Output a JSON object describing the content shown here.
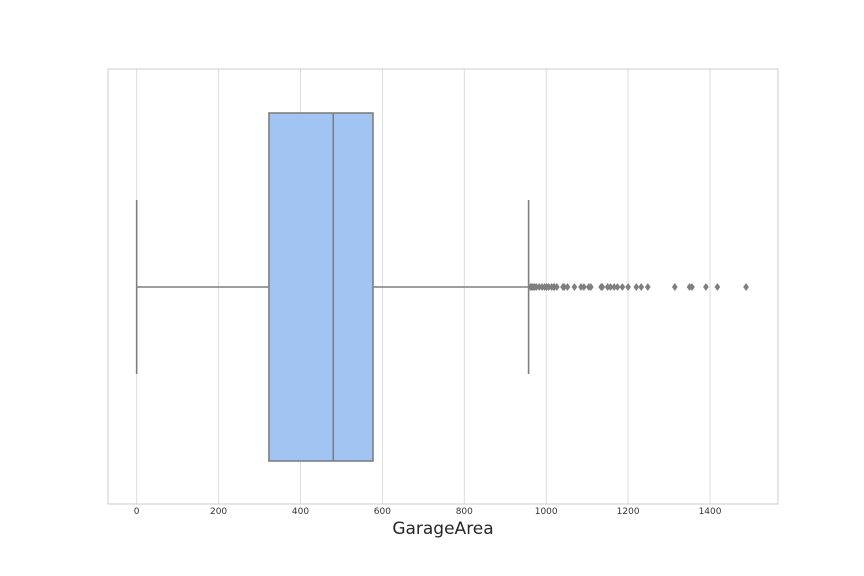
{
  "chart_data": {
    "type": "box",
    "title": "",
    "xlabel": "GarageArea",
    "ylabel": "",
    "xlim": [
      -70,
      1566
    ],
    "x_ticks": [
      0,
      200,
      400,
      600,
      800,
      1000,
      1200,
      1400
    ],
    "x_tick_labels": [
      "0",
      "200",
      "400",
      "600",
      "800",
      "1000",
      "1200",
      "1400"
    ],
    "grid": "vertical",
    "orientation": "horizontal",
    "series": [
      {
        "min": 0,
        "q1": 323,
        "median": 480,
        "q3": 577,
        "max": 957,
        "outliers": [
          962,
          965,
          968,
          972,
          976,
          983,
          990,
          996,
          1001,
          1006,
          1013,
          1018,
          1020,
          1026,
          1041,
          1044,
          1052,
          1069,
          1085,
          1092,
          1104,
          1109,
          1134,
          1137,
          1150,
          1157,
          1166,
          1174,
          1186,
          1200,
          1220,
          1232,
          1248,
          1314,
          1350,
          1356,
          1390,
          1418,
          1488
        ]
      }
    ],
    "colors": {
      "box_fill": "#a1c4f3",
      "line": "#7f7f7f",
      "grid": "#dcdcdc",
      "frame": "#cccccc"
    }
  }
}
